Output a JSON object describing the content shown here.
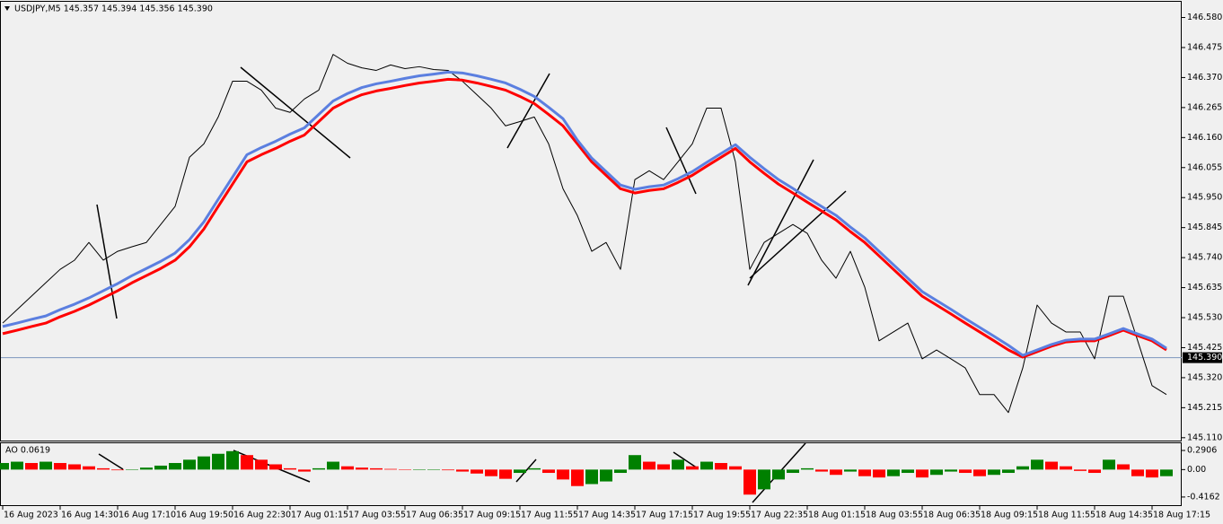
{
  "chart_data": [
    {
      "type": "line",
      "title": "USDJPY,M5  145.357 145.394 145.356 145.390",
      "categories": [
        "16 Aug 2023",
        null,
        null,
        null,
        "16 Aug 14:30",
        null,
        null,
        null,
        "16 Aug 17:10",
        null,
        null,
        null,
        "16 Aug 19:50",
        null,
        null,
        null,
        "16 Aug 22:30",
        null,
        null,
        null,
        "17 Aug 01:15",
        null,
        null,
        null,
        "17 Aug 03:55",
        null,
        null,
        null,
        "17 Aug 06:35",
        null,
        null,
        null,
        "17 Aug 09:15",
        null,
        null,
        null,
        "17 Aug 11:55",
        null,
        null,
        null,
        "17 Aug 14:35",
        null,
        null,
        null,
        "17 Aug 17:15",
        null,
        null,
        null,
        "17 Aug 19:55",
        null,
        null,
        null,
        "17 Aug 22:35",
        null,
        null,
        null,
        "18 Aug 01:15",
        null,
        null,
        null,
        "18 Aug 03:55",
        null,
        null,
        null,
        "18 Aug 06:35",
        null,
        null,
        null,
        "18 Aug 09:15",
        null,
        null,
        null,
        "18 Aug 11:55",
        null,
        null,
        null,
        "18 Aug 14:35",
        null,
        null,
        null,
        "18 Aug 17:15",
        null
      ],
      "series": [
        {
          "color": "#000000",
          "values": [
            145.511,
            145.558,
            145.605,
            145.652,
            145.699,
            145.731,
            145.793,
            145.731,
            145.762,
            145.778,
            145.793,
            145.856,
            145.919,
            146.091,
            146.138,
            146.232,
            146.357,
            146.357,
            146.326,
            146.263,
            146.248,
            146.295,
            146.326,
            146.451,
            146.42,
            146.404,
            146.395,
            146.414,
            146.401,
            146.408,
            146.398,
            146.395,
            146.357,
            146.31,
            146.263,
            146.201,
            146.216,
            146.232,
            146.138,
            145.981,
            145.887,
            145.762,
            145.793,
            145.699,
            146.013,
            146.044,
            146.013,
            146.075,
            146.138,
            146.263,
            146.263,
            146.075,
            145.699,
            145.793,
            145.825,
            145.856,
            145.825,
            145.731,
            145.668,
            145.762,
            145.637,
            145.449,
            145.48,
            145.511,
            145.386,
            145.417,
            145.386,
            145.354,
            145.261,
            145.261,
            145.198,
            145.354,
            145.574,
            145.511,
            145.48,
            145.48,
            145.386,
            145.605,
            145.605,
            145.449,
            145.292,
            145.261
          ]
        },
        {
          "color": "#ff0000",
          "values": [
            145.474,
            145.486,
            145.499,
            145.511,
            145.533,
            145.552,
            145.574,
            145.599,
            145.624,
            145.652,
            145.677,
            145.702,
            145.731,
            145.778,
            145.84,
            145.919,
            145.997,
            146.075,
            146.1,
            146.122,
            146.147,
            146.169,
            146.216,
            146.263,
            146.289,
            146.31,
            146.323,
            146.332,
            146.342,
            146.351,
            146.357,
            146.364,
            146.361,
            146.351,
            146.339,
            146.326,
            146.304,
            146.279,
            146.241,
            146.201,
            146.138,
            146.075,
            146.028,
            145.981,
            145.966,
            145.975,
            145.981,
            146.003,
            146.028,
            146.06,
            146.091,
            146.122,
            146.075,
            146.035,
            145.997,
            145.966,
            145.934,
            145.903,
            145.872,
            145.831,
            145.793,
            145.746,
            145.699,
            145.652,
            145.605,
            145.574,
            145.543,
            145.511,
            145.48,
            145.449,
            145.417,
            145.392,
            145.411,
            145.43,
            145.445,
            145.449,
            145.449,
            145.467,
            145.486,
            145.467,
            145.449,
            145.417
          ]
        },
        {
          "color": "#5b7fe0",
          "values": [
            145.499,
            145.511,
            145.524,
            145.536,
            145.558,
            145.577,
            145.599,
            145.624,
            145.649,
            145.677,
            145.702,
            145.727,
            145.756,
            145.803,
            145.865,
            145.944,
            146.022,
            146.1,
            146.125,
            146.147,
            146.172,
            146.194,
            146.241,
            146.288,
            146.314,
            146.335,
            146.348,
            146.357,
            146.367,
            146.376,
            146.382,
            146.389,
            146.386,
            146.376,
            146.364,
            146.351,
            146.329,
            146.304,
            146.266,
            146.226,
            146.151,
            146.088,
            146.041,
            145.994,
            145.979,
            145.988,
            145.994,
            146.016,
            146.041,
            146.073,
            146.104,
            146.135,
            146.091,
            146.051,
            146.013,
            145.982,
            145.95,
            145.919,
            145.888,
            145.847,
            145.809,
            145.762,
            145.715,
            145.668,
            145.621,
            145.59,
            145.559,
            145.527,
            145.496,
            145.465,
            145.433,
            145.398,
            145.417,
            145.436,
            145.451,
            145.455,
            145.455,
            145.473,
            145.492,
            145.473,
            145.455,
            145.423
          ]
        }
      ],
      "ylim": [
        145.1,
        146.635
      ],
      "yticks": [
        {
          "value": 146.58,
          "label": "146.580"
        },
        {
          "value": 146.475,
          "label": "146.475"
        },
        {
          "value": 146.37,
          "label": "146.370"
        },
        {
          "value": 146.265,
          "label": "146.265"
        },
        {
          "value": 146.16,
          "label": "146.160"
        },
        {
          "value": 146.055,
          "label": "146.055"
        },
        {
          "value": 145.95,
          "label": "145.950"
        },
        {
          "value": 145.845,
          "label": "145.845"
        },
        {
          "value": 145.74,
          "label": "145.740"
        },
        {
          "value": 145.635,
          "label": "145.635"
        },
        {
          "value": 145.53,
          "label": "145.530"
        },
        {
          "value": 145.425,
          "label": "145.425"
        },
        {
          "value": 145.32,
          "label": "145.320"
        },
        {
          "value": 145.215,
          "label": "145.215"
        },
        {
          "value": 145.11,
          "label": "145.110"
        }
      ],
      "last_price": {
        "value": 145.39,
        "label": "145.390"
      },
      "grid": false
    },
    {
      "type": "bar",
      "title": "AO 0.0619",
      "up_color": "#008000",
      "down_color": "#ff0000",
      "values": [
        0.1,
        0.12,
        0.1,
        0.12,
        0.1,
        0.08,
        0.05,
        0.02,
        -0.01,
        0.0,
        0.03,
        0.06,
        0.1,
        0.15,
        0.2,
        0.24,
        0.28,
        0.22,
        0.15,
        0.08,
        0.02,
        -0.03,
        0.02,
        0.12,
        0.05,
        0.03,
        0.02,
        0.01,
        0.0,
        0.0,
        0.0,
        -0.01,
        -0.03,
        -0.06,
        -0.1,
        -0.14,
        -0.05,
        0.02,
        -0.05,
        -0.15,
        -0.25,
        -0.22,
        -0.18,
        -0.05,
        0.22,
        0.12,
        0.08,
        0.15,
        0.05,
        0.12,
        0.1,
        0.05,
        -0.38,
        -0.3,
        -0.15,
        -0.05,
        0.02,
        -0.03,
        -0.08,
        -0.03,
        -0.1,
        -0.12,
        -0.1,
        -0.05,
        -0.12,
        -0.08,
        -0.03,
        -0.05,
        -0.1,
        -0.08,
        -0.05,
        0.05,
        0.15,
        0.12,
        0.05,
        -0.02,
        -0.05,
        0.15,
        0.08,
        -0.1,
        -0.12,
        -0.1
      ],
      "ylim": [
        -0.54,
        0.4
      ],
      "yticks": [
        0.2906,
        {
          "value": 0,
          "label": "0.00"
        },
        -0.4162
      ],
      "grid": false
    }
  ]
}
